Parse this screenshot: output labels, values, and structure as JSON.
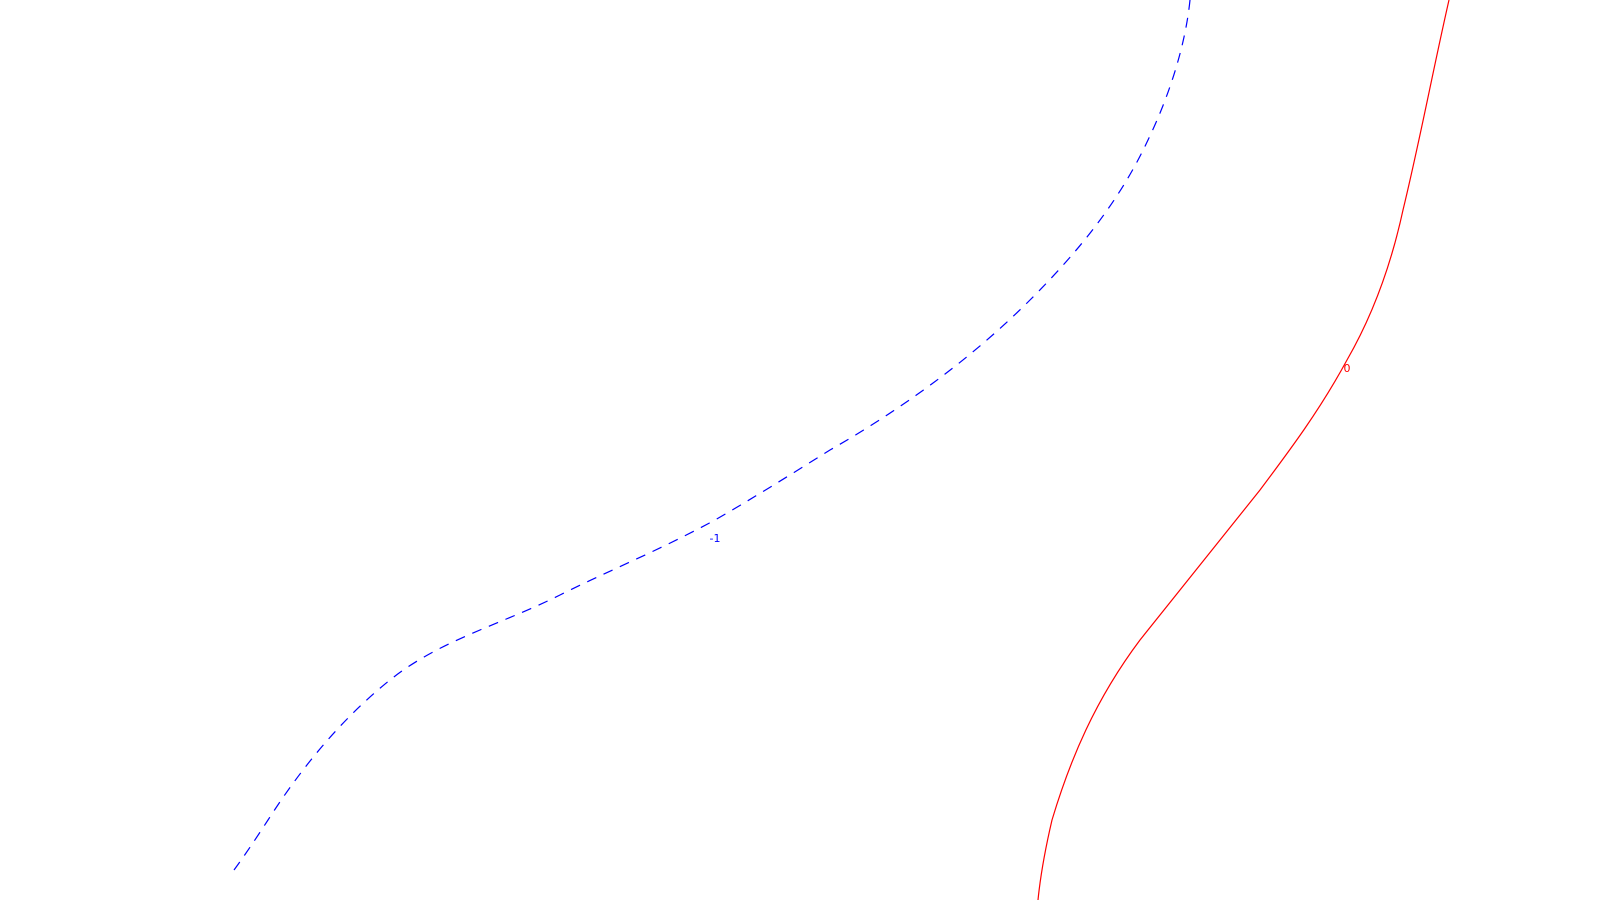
{
  "chart_data": {
    "type": "contour",
    "contours": [
      {
        "level_label": "0",
        "color": "#ff0000",
        "line_style": "solid"
      },
      {
        "level_label": "-1",
        "color": "#0000ff",
        "line_style": "dashed"
      }
    ],
    "background": "#ffffff",
    "grid": false,
    "legend": "none"
  }
}
